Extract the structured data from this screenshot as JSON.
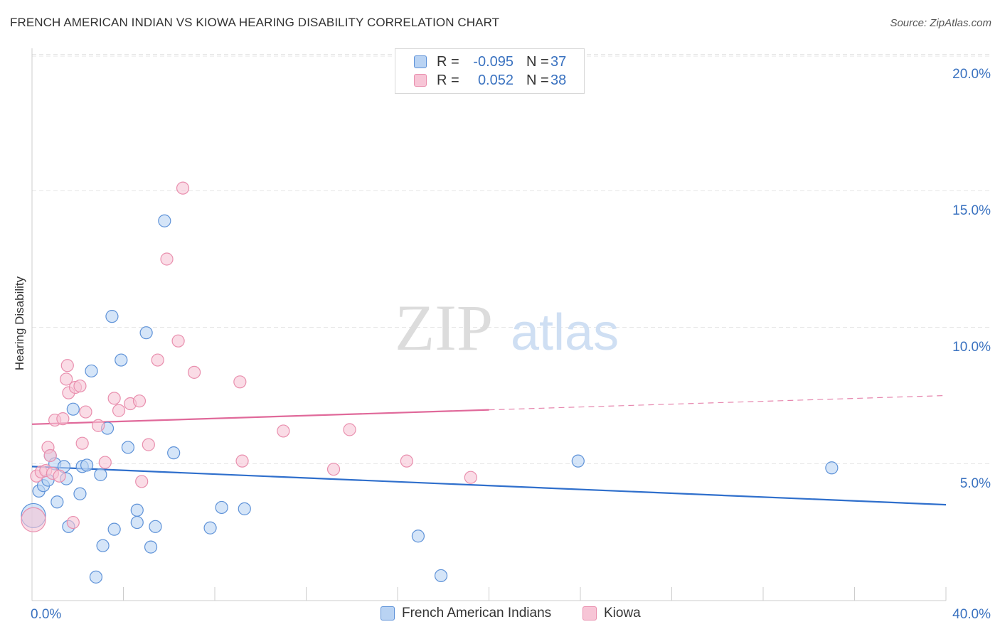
{
  "title": "FRENCH AMERICAN INDIAN VS KIOWA HEARING DISABILITY CORRELATION CHART",
  "source": "Source: ZipAtlas.com",
  "watermark": {
    "zip": "ZIP",
    "atlas": "atlas"
  },
  "legend": {
    "series1": {
      "r_label": "R =",
      "r_value": "-0.095",
      "n_label": "N =",
      "n_value": "37"
    },
    "series2": {
      "r_label": "R =",
      "r_value": "0.052",
      "n_label": "N =",
      "n_value": "38"
    }
  },
  "bottom_legend": {
    "series1": "French American Indians",
    "series2": "Kiowa"
  },
  "colors": {
    "blue_fill": "#b9d3f3",
    "blue_stroke": "#5e92d8",
    "blue_line": "#2f6fcc",
    "pink_fill": "#f7c5d6",
    "pink_stroke": "#e98fae",
    "pink_line": "#e0699a",
    "tick_label": "#3a72c0",
    "grid": "#e6e6e6"
  },
  "chart_data": {
    "type": "scatter",
    "title": "FRENCH AMERICAN INDIAN VS KIOWA HEARING DISABILITY CORRELATION CHART",
    "xlabel": "",
    "ylabel": "Hearing Disability",
    "xlim": [
      0,
      40
    ],
    "ylim": [
      0,
      20
    ],
    "x_tick_labels": [
      "0.0%",
      "40.0%"
    ],
    "y_ticks": [
      5,
      10,
      15,
      20
    ],
    "y_tick_labels": [
      "5.0%",
      "10.0%",
      "15.0%",
      "20.0%"
    ],
    "grid": true,
    "series": [
      {
        "name": "French American Indians",
        "r": -0.095,
        "n": 37,
        "trend": {
          "x": [
            0,
            40
          ],
          "y": [
            4.9,
            3.5
          ],
          "dashed_from": null
        },
        "points": [
          {
            "x": 0.0,
            "y": 3.1,
            "big": true
          },
          {
            "x": 0.3,
            "y": 4.0
          },
          {
            "x": 0.5,
            "y": 4.2
          },
          {
            "x": 0.7,
            "y": 4.4
          },
          {
            "x": 0.8,
            "y": 5.3
          },
          {
            "x": 1.0,
            "y": 5.0
          },
          {
            "x": 1.1,
            "y": 3.6
          },
          {
            "x": 1.4,
            "y": 4.9
          },
          {
            "x": 1.5,
            "y": 4.45
          },
          {
            "x": 1.6,
            "y": 2.7
          },
          {
            "x": 1.8,
            "y": 7.0
          },
          {
            "x": 2.1,
            "y": 3.9
          },
          {
            "x": 2.2,
            "y": 4.9
          },
          {
            "x": 2.4,
            "y": 4.95
          },
          {
            "x": 2.6,
            "y": 8.4
          },
          {
            "x": 3.0,
            "y": 4.6
          },
          {
            "x": 3.1,
            "y": 2.0
          },
          {
            "x": 3.3,
            "y": 6.3
          },
          {
            "x": 3.5,
            "y": 10.4
          },
          {
            "x": 3.6,
            "y": 2.6
          },
          {
            "x": 2.8,
            "y": 0.85
          },
          {
            "x": 3.9,
            "y": 8.8
          },
          {
            "x": 4.2,
            "y": 5.6
          },
          {
            "x": 4.6,
            "y": 3.3
          },
          {
            "x": 4.6,
            "y": 2.85
          },
          {
            "x": 5.0,
            "y": 9.8
          },
          {
            "x": 5.2,
            "y": 1.95
          },
          {
            "x": 5.4,
            "y": 2.7
          },
          {
            "x": 5.8,
            "y": 13.9
          },
          {
            "x": 6.2,
            "y": 5.4
          },
          {
            "x": 7.8,
            "y": 2.65
          },
          {
            "x": 8.3,
            "y": 3.4
          },
          {
            "x": 9.3,
            "y": 3.35
          },
          {
            "x": 16.9,
            "y": 2.35
          },
          {
            "x": 17.9,
            "y": 0.9
          },
          {
            "x": 23.9,
            "y": 5.1
          },
          {
            "x": 35.0,
            "y": 4.85
          }
        ]
      },
      {
        "name": "Kiowa",
        "r": 0.052,
        "n": 38,
        "trend": {
          "x": [
            0,
            40
          ],
          "y": [
            6.45,
            7.5
          ],
          "dashed_from": 20
        },
        "points": [
          {
            "x": 0.0,
            "y": 2.95,
            "big": true
          },
          {
            "x": 0.2,
            "y": 4.55
          },
          {
            "x": 0.4,
            "y": 4.7
          },
          {
            "x": 0.6,
            "y": 4.75
          },
          {
            "x": 0.7,
            "y": 5.6
          },
          {
            "x": 0.8,
            "y": 5.3
          },
          {
            "x": 0.9,
            "y": 4.65
          },
          {
            "x": 1.0,
            "y": 6.6
          },
          {
            "x": 1.2,
            "y": 4.55
          },
          {
            "x": 1.35,
            "y": 6.65
          },
          {
            "x": 1.5,
            "y": 8.1
          },
          {
            "x": 1.55,
            "y": 8.6
          },
          {
            "x": 1.6,
            "y": 7.6
          },
          {
            "x": 1.8,
            "y": 2.85
          },
          {
            "x": 1.9,
            "y": 7.8
          },
          {
            "x": 2.1,
            "y": 7.85
          },
          {
            "x": 2.2,
            "y": 5.75
          },
          {
            "x": 2.35,
            "y": 6.9
          },
          {
            "x": 2.9,
            "y": 6.4
          },
          {
            "x": 3.2,
            "y": 5.05
          },
          {
            "x": 3.6,
            "y": 7.4
          },
          {
            "x": 3.8,
            "y": 6.95
          },
          {
            "x": 4.3,
            "y": 7.2
          },
          {
            "x": 4.7,
            "y": 7.3
          },
          {
            "x": 4.8,
            "y": 4.35
          },
          {
            "x": 5.1,
            "y": 5.7
          },
          {
            "x": 5.5,
            "y": 8.8
          },
          {
            "x": 5.9,
            "y": 12.5
          },
          {
            "x": 6.4,
            "y": 9.5
          },
          {
            "x": 6.6,
            "y": 15.1
          },
          {
            "x": 7.1,
            "y": 8.35
          },
          {
            "x": 9.1,
            "y": 8.0
          },
          {
            "x": 9.2,
            "y": 5.1
          },
          {
            "x": 11.0,
            "y": 6.2
          },
          {
            "x": 13.2,
            "y": 4.8
          },
          {
            "x": 13.9,
            "y": 6.25
          },
          {
            "x": 16.4,
            "y": 5.1
          },
          {
            "x": 19.2,
            "y": 4.5
          }
        ]
      }
    ]
  }
}
